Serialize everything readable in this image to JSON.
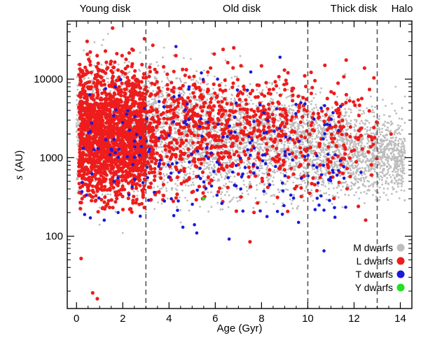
{
  "chart_data": {
    "type": "scatter",
    "xlabel": "Age (Gyr)",
    "ylabel": "s (AU)",
    "ylabel_italic": "s",
    "ylabel_unit": "(AU)",
    "xlim": [
      -0.4,
      14.5
    ],
    "ylim": [
      12,
      55000
    ],
    "y_scale": "log",
    "x_ticks": [
      0,
      2,
      4,
      6,
      8,
      10,
      12,
      14
    ],
    "x_tick_labels": [
      "0",
      "2",
      "4",
      "6",
      "8",
      "10",
      "12",
      "14"
    ],
    "y_ticks": [
      100,
      1000,
      10000
    ],
    "y_tick_labels": [
      "100",
      "1000",
      "10000"
    ],
    "region_boundaries": [
      3,
      10,
      13
    ],
    "regions": [
      {
        "name": "Young disk",
        "from": -0.4,
        "to": 3
      },
      {
        "name": "Old disk",
        "from": 3,
        "to": 10
      },
      {
        "name": "Thick disk",
        "from": 10,
        "to": 13
      },
      {
        "name": "Halo",
        "from": 13,
        "to": 14.5
      }
    ],
    "legend_placement": "bottom-right",
    "series": [
      {
        "name": "M dwarfs",
        "color": "#bdbdbd",
        "distribution": "dense cloud, x 0–14.2 Gyr, s mostly 700–55000 AU (centred near 2000–4000 AU)",
        "points": [
          [
            0.2,
            2000
          ],
          [
            1.5,
            5000
          ],
          [
            3.5,
            3000
          ],
          [
            5,
            4000
          ],
          [
            7,
            2500
          ],
          [
            9,
            3000
          ],
          [
            11,
            2500
          ],
          [
            12.5,
            3000
          ],
          [
            13.3,
            3500
          ],
          [
            14,
            2000
          ],
          [
            14.2,
            6000
          ],
          [
            13.6,
            1500
          ],
          [
            13.8,
            8000
          ],
          [
            4.5,
            150
          ],
          [
            1,
            140
          ],
          [
            3,
            200
          ],
          [
            2,
            110
          ]
        ]
      },
      {
        "name": "L dwarfs",
        "color": "#ee1c1c",
        "distribution": "dense at x 0–3 Gyr, s 150–55000 AU; sparser from 3 to 13 Gyr",
        "points": [
          [
            0.2,
            52
          ],
          [
            0.7,
            19
          ],
          [
            0.9,
            16
          ],
          [
            3.3,
            27000
          ],
          [
            4.5,
            1200
          ],
          [
            6.8,
            25000
          ],
          [
            7.5,
            85
          ],
          [
            9,
            700
          ],
          [
            10.5,
            1500
          ],
          [
            12.2,
            1800
          ],
          [
            12.5,
            160
          ],
          [
            13,
            2800
          ],
          [
            13.6,
            2000
          ],
          [
            11.2,
            2500
          ],
          [
            8.2,
            9000
          ]
        ]
      },
      {
        "name": "T dwarfs",
        "color": "#1a1ad9",
        "distribution": "x 0.2–12.5 Gyr, s 70–30000 AU",
        "points": [
          [
            5.2,
            110
          ],
          [
            4.6,
            130
          ],
          [
            5.1,
            140
          ],
          [
            6.6,
            92
          ],
          [
            7.1,
            400
          ],
          [
            8.9,
            190
          ],
          [
            9.6,
            150
          ],
          [
            10.7,
            65
          ],
          [
            12.3,
            650
          ],
          [
            4.3,
            26000
          ],
          [
            8.8,
            19000
          ],
          [
            5.4,
            12000
          ],
          [
            6.1,
            10000
          ],
          [
            9.7,
            5000
          ],
          [
            1.8,
            200
          ],
          [
            1.2,
            160
          ],
          [
            4.1,
            300
          ],
          [
            3.8,
            280
          ]
        ]
      },
      {
        "name": "Y dwarfs",
        "color": "#22e022",
        "distribution": "single point",
        "points": [
          [
            5.5,
            300
          ]
        ]
      }
    ]
  }
}
